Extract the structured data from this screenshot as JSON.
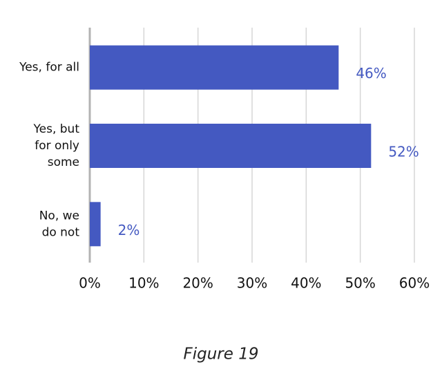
{
  "chart_data": {
    "type": "bar",
    "orientation": "horizontal",
    "caption": "Figure 19",
    "categories": [
      [
        "Yes, for all"
      ],
      [
        "Yes, but",
        "for only",
        "some"
      ],
      [
        "No, we",
        "do not"
      ]
    ],
    "values": [
      46,
      52,
      2
    ],
    "value_labels": [
      "46%",
      "52%",
      "2%"
    ],
    "color": "#4459c1",
    "xlim": [
      0,
      60
    ],
    "xticks": [
      {
        "value": 0,
        "label": "0%"
      },
      {
        "value": 10,
        "label": "10%"
      },
      {
        "value": 20,
        "label": "20%"
      },
      {
        "value": 30,
        "label": "30%"
      },
      {
        "value": 40,
        "label": "40%"
      },
      {
        "value": 50,
        "label": "50%"
      },
      {
        "value": 60,
        "label": "60%"
      }
    ],
    "grid": true
  }
}
